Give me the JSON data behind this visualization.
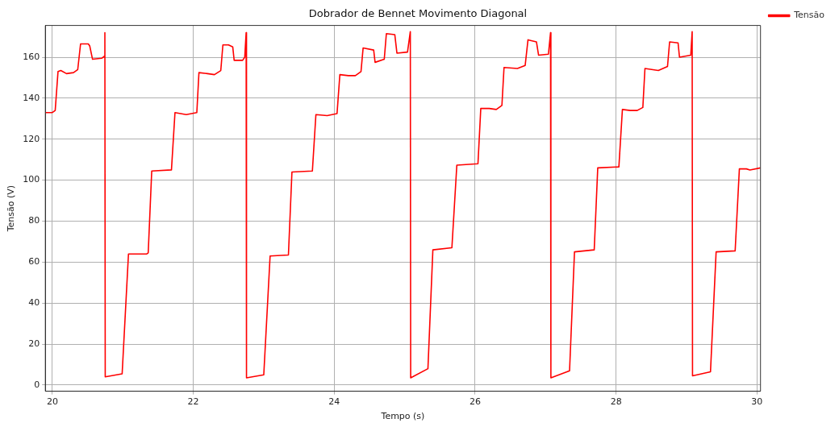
{
  "chart_data": {
    "type": "line",
    "title": "Dobrador de Bennet Movimento Diagonal",
    "xlabel": "Tempo (s)",
    "ylabel": "Tensão (V)",
    "series": [
      {
        "name": "Tensão",
        "color": "#ff0000",
        "x": [
          19.9,
          20.0,
          20.04,
          20.08,
          20.12,
          20.2,
          20.3,
          20.36,
          20.4,
          20.51,
          20.53,
          20.57,
          20.7,
          20.74,
          20.745,
          20.75,
          20.99,
          21.08,
          21.34,
          21.36,
          21.41,
          21.69,
          21.74,
          21.9,
          22.05,
          22.08,
          22.2,
          22.3,
          22.39,
          22.42,
          22.5,
          22.56,
          22.58,
          22.7,
          22.73,
          22.75,
          22.755,
          23.0,
          23.09,
          23.35,
          23.4,
          23.69,
          23.74,
          23.9,
          24.04,
          24.08,
          24.2,
          24.3,
          24.38,
          24.41,
          24.56,
          24.58,
          24.71,
          24.74,
          24.86,
          24.89,
          25.04,
          25.08,
          25.085,
          25.33,
          25.4,
          25.67,
          25.74,
          26.04,
          26.08,
          26.2,
          26.3,
          26.38,
          26.41,
          26.6,
          26.71,
          26.75,
          26.87,
          26.9,
          27.04,
          27.07,
          27.075,
          27.34,
          27.41,
          27.69,
          27.74,
          28.04,
          28.09,
          28.2,
          28.3,
          28.38,
          28.41,
          28.6,
          28.73,
          28.76,
          28.88,
          28.9,
          29.06,
          29.08,
          29.085,
          29.34,
          29.42,
          29.69,
          29.75,
          29.85,
          29.9,
          30.05
        ],
        "values": [
          133,
          133,
          134,
          153,
          153.5,
          152,
          152.5,
          154,
          166.5,
          166.5,
          165.5,
          159,
          159.5,
          160.5,
          172,
          4,
          5.5,
          64,
          64,
          64.5,
          104.5,
          105,
          133,
          132,
          133,
          152.5,
          152,
          151.5,
          153.5,
          166,
          166,
          165,
          158.5,
          158.5,
          160,
          172,
          3.5,
          5,
          63,
          63.5,
          104,
          104.5,
          132,
          131.5,
          132.5,
          151.5,
          151,
          151,
          153,
          164.5,
          163.5,
          157.5,
          159,
          171.5,
          171,
          162,
          162.5,
          172.5,
          3.5,
          8,
          66,
          67,
          107.3,
          108,
          135,
          135,
          134.5,
          136.5,
          155,
          154.5,
          156,
          168.5,
          167.5,
          161,
          161.5,
          172,
          3.5,
          7,
          65,
          66,
          106,
          106.5,
          134.5,
          134,
          134,
          135.5,
          154.5,
          153.5,
          155.5,
          167.5,
          167,
          160,
          161,
          172.5,
          4.5,
          6.5,
          65,
          65.5,
          105.5,
          105.5,
          105,
          106
        ]
      }
    ],
    "xlim": [
      19.9,
      30.05
    ],
    "ylim": [
      -3,
      175.5
    ],
    "xticks": [
      20,
      22,
      24,
      26,
      28,
      30
    ],
    "yticks": [
      0,
      20,
      40,
      60,
      80,
      100,
      120,
      140,
      160
    ],
    "grid": true,
    "legend": "top right",
    "line_style": "solid",
    "marker": "none"
  }
}
